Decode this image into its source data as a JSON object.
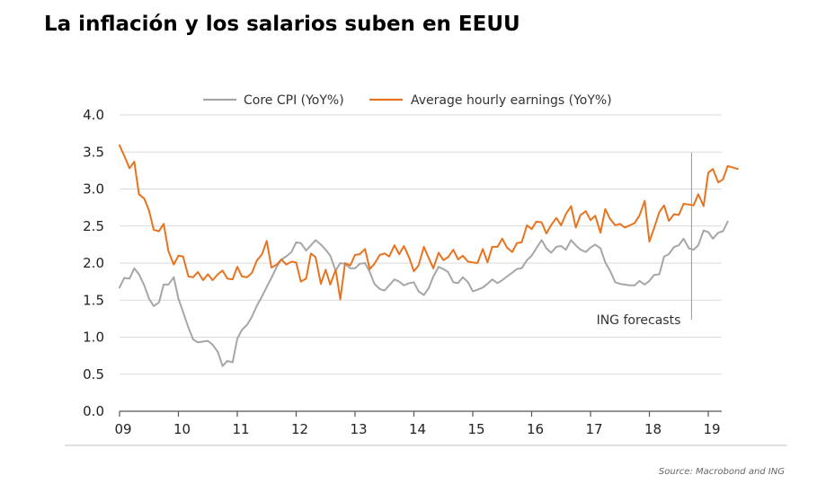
{
  "title": "La inflación y los salarios suben en EEUU",
  "source": "Source: Macrobond and ING",
  "chart_data": {
    "type": "line",
    "title": "La inflación y los salarios suben en EEUU",
    "xlabel": "",
    "ylabel": "",
    "ylim": [
      0,
      4
    ],
    "yticks": [
      "0.0",
      "0.5",
      "1.0",
      "1.5",
      "2.0",
      "2.5",
      "3.0",
      "3.5",
      "4.0"
    ],
    "xlim": [
      2009.0,
      2019.35
    ],
    "xticks": [
      {
        "value": 2009,
        "label": "09"
      },
      {
        "value": 2010,
        "label": "10"
      },
      {
        "value": 2011,
        "label": "11"
      },
      {
        "value": 2012,
        "label": "12"
      },
      {
        "value": 2013,
        "label": "13"
      },
      {
        "value": 2014,
        "label": "14"
      },
      {
        "value": 2015,
        "label": "15"
      },
      {
        "value": 2016,
        "label": "16"
      },
      {
        "value": 2017,
        "label": "17"
      },
      {
        "value": 2018,
        "label": "18"
      },
      {
        "value": 2019,
        "label": "19"
      }
    ],
    "grid": "horizontal",
    "legend_position": "top",
    "annotation": {
      "text": "ING forecasts",
      "x": 2018.67
    },
    "series": [
      {
        "name": "Core CPI (YoY%)",
        "color": "#a6a6a6",
        "points": [
          [
            2009.0,
            1.67
          ],
          [
            2009.08,
            1.8
          ],
          [
            2009.17,
            1.79
          ],
          [
            2009.25,
            1.93
          ],
          [
            2009.33,
            1.85
          ],
          [
            2009.42,
            1.7
          ],
          [
            2009.5,
            1.52
          ],
          [
            2009.58,
            1.42
          ],
          [
            2009.67,
            1.47
          ],
          [
            2009.75,
            1.71
          ],
          [
            2009.83,
            1.71
          ],
          [
            2009.92,
            1.81
          ],
          [
            2010.0,
            1.52
          ],
          [
            2010.08,
            1.34
          ],
          [
            2010.17,
            1.13
          ],
          [
            2010.25,
            0.97
          ],
          [
            2010.33,
            0.93
          ],
          [
            2010.42,
            0.94
          ],
          [
            2010.5,
            0.95
          ],
          [
            2010.58,
            0.9
          ],
          [
            2010.67,
            0.8
          ],
          [
            2010.75,
            0.61
          ],
          [
            2010.83,
            0.68
          ],
          [
            2010.92,
            0.66
          ],
          [
            2011.0,
            0.98
          ],
          [
            2011.08,
            1.1
          ],
          [
            2011.17,
            1.17
          ],
          [
            2011.25,
            1.28
          ],
          [
            2011.33,
            1.42
          ],
          [
            2011.42,
            1.55
          ],
          [
            2011.5,
            1.68
          ],
          [
            2011.58,
            1.8
          ],
          [
            2011.67,
            1.95
          ],
          [
            2011.75,
            2.05
          ],
          [
            2011.83,
            2.09
          ],
          [
            2011.92,
            2.15
          ],
          [
            2012.0,
            2.28
          ],
          [
            2012.08,
            2.27
          ],
          [
            2012.17,
            2.17
          ],
          [
            2012.25,
            2.24
          ],
          [
            2012.33,
            2.31
          ],
          [
            2012.42,
            2.25
          ],
          [
            2012.5,
            2.18
          ],
          [
            2012.58,
            2.1
          ],
          [
            2012.67,
            1.9
          ],
          [
            2012.75,
            2.0
          ],
          [
            2012.83,
            1.99
          ],
          [
            2012.92,
            1.93
          ],
          [
            2013.0,
            1.93
          ],
          [
            2013.08,
            1.99
          ],
          [
            2013.17,
            2.0
          ],
          [
            2013.25,
            1.88
          ],
          [
            2013.33,
            1.72
          ],
          [
            2013.42,
            1.65
          ],
          [
            2013.5,
            1.63
          ],
          [
            2013.58,
            1.7
          ],
          [
            2013.67,
            1.78
          ],
          [
            2013.75,
            1.75
          ],
          [
            2013.83,
            1.7
          ],
          [
            2013.92,
            1.73
          ],
          [
            2014.0,
            1.74
          ],
          [
            2014.08,
            1.62
          ],
          [
            2014.17,
            1.57
          ],
          [
            2014.25,
            1.66
          ],
          [
            2014.33,
            1.82
          ],
          [
            2014.42,
            1.95
          ],
          [
            2014.5,
            1.92
          ],
          [
            2014.58,
            1.88
          ],
          [
            2014.67,
            1.74
          ],
          [
            2014.75,
            1.73
          ],
          [
            2014.83,
            1.81
          ],
          [
            2014.92,
            1.74
          ],
          [
            2015.0,
            1.62
          ],
          [
            2015.08,
            1.64
          ],
          [
            2015.17,
            1.67
          ],
          [
            2015.25,
            1.72
          ],
          [
            2015.33,
            1.78
          ],
          [
            2015.42,
            1.73
          ],
          [
            2015.5,
            1.77
          ],
          [
            2015.58,
            1.82
          ],
          [
            2015.67,
            1.87
          ],
          [
            2015.75,
            1.92
          ],
          [
            2015.83,
            1.93
          ],
          [
            2015.92,
            2.04
          ],
          [
            2016.0,
            2.1
          ],
          [
            2016.08,
            2.2
          ],
          [
            2016.17,
            2.31
          ],
          [
            2016.25,
            2.2
          ],
          [
            2016.33,
            2.14
          ],
          [
            2016.42,
            2.22
          ],
          [
            2016.5,
            2.23
          ],
          [
            2016.58,
            2.18
          ],
          [
            2016.67,
            2.31
          ],
          [
            2016.75,
            2.24
          ],
          [
            2016.83,
            2.18
          ],
          [
            2016.92,
            2.15
          ],
          [
            2017.0,
            2.21
          ],
          [
            2017.08,
            2.25
          ],
          [
            2017.17,
            2.2
          ],
          [
            2017.25,
            2.01
          ],
          [
            2017.33,
            1.9
          ],
          [
            2017.42,
            1.74
          ],
          [
            2017.5,
            1.72
          ],
          [
            2017.58,
            1.71
          ],
          [
            2017.67,
            1.7
          ],
          [
            2017.75,
            1.7
          ],
          [
            2017.83,
            1.76
          ],
          [
            2017.92,
            1.71
          ],
          [
            2018.0,
            1.76
          ],
          [
            2018.08,
            1.84
          ],
          [
            2018.17,
            1.85
          ],
          [
            2018.25,
            2.09
          ],
          [
            2018.33,
            2.12
          ],
          [
            2018.42,
            2.22
          ],
          [
            2018.5,
            2.24
          ],
          [
            2018.58,
            2.33
          ],
          [
            2018.67,
            2.2
          ],
          [
            2018.75,
            2.18
          ],
          [
            2018.83,
            2.24
          ],
          [
            2018.92,
            2.44
          ],
          [
            2019.0,
            2.42
          ],
          [
            2019.08,
            2.33
          ],
          [
            2019.17,
            2.41
          ],
          [
            2019.25,
            2.43
          ],
          [
            2019.33,
            2.56
          ]
        ]
      },
      {
        "name": "Average hourly earnings (YoY%)",
        "color": "#e8731e",
        "points": [
          [
            2009.0,
            3.59
          ],
          [
            2009.08,
            3.45
          ],
          [
            2009.17,
            3.28
          ],
          [
            2009.25,
            3.37
          ],
          [
            2009.33,
            2.93
          ],
          [
            2009.42,
            2.87
          ],
          [
            2009.5,
            2.71
          ],
          [
            2009.58,
            2.45
          ],
          [
            2009.67,
            2.43
          ],
          [
            2009.75,
            2.53
          ],
          [
            2009.83,
            2.16
          ],
          [
            2009.92,
            1.98
          ],
          [
            2010.0,
            2.1
          ],
          [
            2010.08,
            2.09
          ],
          [
            2010.17,
            1.82
          ],
          [
            2010.25,
            1.81
          ],
          [
            2010.33,
            1.88
          ],
          [
            2010.42,
            1.77
          ],
          [
            2010.5,
            1.85
          ],
          [
            2010.58,
            1.77
          ],
          [
            2010.67,
            1.85
          ],
          [
            2010.75,
            1.9
          ],
          [
            2010.83,
            1.79
          ],
          [
            2010.92,
            1.78
          ],
          [
            2011.0,
            1.95
          ],
          [
            2011.08,
            1.82
          ],
          [
            2011.17,
            1.81
          ],
          [
            2011.25,
            1.87
          ],
          [
            2011.33,
            2.03
          ],
          [
            2011.42,
            2.12
          ],
          [
            2011.5,
            2.3
          ],
          [
            2011.58,
            1.94
          ],
          [
            2011.67,
            1.98
          ],
          [
            2011.75,
            2.05
          ],
          [
            2011.83,
            1.98
          ],
          [
            2011.92,
            2.02
          ],
          [
            2012.0,
            2.01
          ],
          [
            2012.08,
            1.75
          ],
          [
            2012.17,
            1.79
          ],
          [
            2012.25,
            2.13
          ],
          [
            2012.33,
            2.08
          ],
          [
            2012.42,
            1.72
          ],
          [
            2012.5,
            1.91
          ],
          [
            2012.58,
            1.71
          ],
          [
            2012.67,
            1.91
          ],
          [
            2012.75,
            1.51
          ],
          [
            2012.83,
            2.0
          ],
          [
            2012.92,
            1.97
          ],
          [
            2013.0,
            2.11
          ],
          [
            2013.08,
            2.12
          ],
          [
            2013.17,
            2.19
          ],
          [
            2013.25,
            1.92
          ],
          [
            2013.33,
            1.99
          ],
          [
            2013.42,
            2.11
          ],
          [
            2013.5,
            2.13
          ],
          [
            2013.58,
            2.09
          ],
          [
            2013.67,
            2.24
          ],
          [
            2013.75,
            2.12
          ],
          [
            2013.83,
            2.23
          ],
          [
            2013.92,
            2.07
          ],
          [
            2014.0,
            1.89
          ],
          [
            2014.08,
            1.97
          ],
          [
            2014.17,
            2.22
          ],
          [
            2014.25,
            2.07
          ],
          [
            2014.33,
            1.93
          ],
          [
            2014.42,
            2.14
          ],
          [
            2014.5,
            2.04
          ],
          [
            2014.58,
            2.08
          ],
          [
            2014.67,
            2.18
          ],
          [
            2014.75,
            2.05
          ],
          [
            2014.83,
            2.1
          ],
          [
            2014.92,
            2.02
          ],
          [
            2015.0,
            2.01
          ],
          [
            2015.08,
            2.0
          ],
          [
            2015.17,
            2.19
          ],
          [
            2015.25,
            2.01
          ],
          [
            2015.33,
            2.22
          ],
          [
            2015.42,
            2.22
          ],
          [
            2015.5,
            2.33
          ],
          [
            2015.58,
            2.21
          ],
          [
            2015.67,
            2.15
          ],
          [
            2015.75,
            2.27
          ],
          [
            2015.83,
            2.28
          ],
          [
            2015.92,
            2.51
          ],
          [
            2016.0,
            2.46
          ],
          [
            2016.08,
            2.56
          ],
          [
            2016.17,
            2.55
          ],
          [
            2016.25,
            2.4
          ],
          [
            2016.33,
            2.51
          ],
          [
            2016.42,
            2.61
          ],
          [
            2016.5,
            2.51
          ],
          [
            2016.58,
            2.66
          ],
          [
            2016.67,
            2.77
          ],
          [
            2016.75,
            2.48
          ],
          [
            2016.83,
            2.65
          ],
          [
            2016.92,
            2.7
          ],
          [
            2017.0,
            2.58
          ],
          [
            2017.08,
            2.64
          ],
          [
            2017.17,
            2.41
          ],
          [
            2017.25,
            2.73
          ],
          [
            2017.33,
            2.6
          ],
          [
            2017.42,
            2.51
          ],
          [
            2017.5,
            2.53
          ],
          [
            2017.58,
            2.48
          ],
          [
            2017.67,
            2.51
          ],
          [
            2017.75,
            2.54
          ],
          [
            2017.83,
            2.64
          ],
          [
            2017.92,
            2.84
          ],
          [
            2018.0,
            2.29
          ],
          [
            2018.08,
            2.47
          ],
          [
            2018.17,
            2.69
          ],
          [
            2018.25,
            2.78
          ],
          [
            2018.33,
            2.57
          ],
          [
            2018.42,
            2.66
          ],
          [
            2018.5,
            2.65
          ],
          [
            2018.58,
            2.8
          ],
          [
            2018.67,
            2.79
          ],
          [
            2018.75,
            2.78
          ],
          [
            2018.83,
            2.93
          ],
          [
            2018.92,
            2.77
          ],
          [
            2019.0,
            3.22
          ],
          [
            2019.08,
            3.27
          ],
          [
            2019.17,
            3.09
          ],
          [
            2019.25,
            3.13
          ],
          [
            2019.33,
            3.31
          ],
          [
            2019.42,
            3.29
          ],
          [
            2019.5,
            3.27
          ]
        ]
      }
    ]
  }
}
